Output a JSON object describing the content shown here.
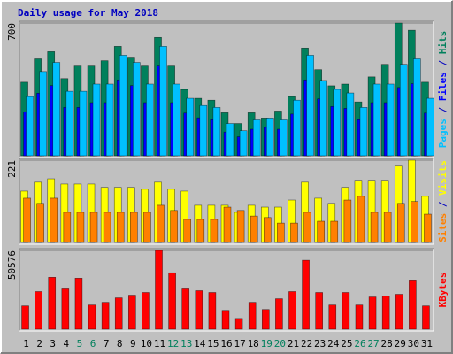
{
  "title": "Daily usage for May 2018",
  "chart_data": [
    {
      "type": "bar",
      "series": [
        {
          "name": "Pages",
          "color": "#00c0ff",
          "values": [
            312,
            444,
            492,
            340,
            340,
            378,
            378,
            530,
            492,
            378,
            577,
            378,
            303,
            265,
            255,
            170,
            132,
            189,
            199,
            189,
            293,
            530,
            397,
            350,
            331,
            255,
            378,
            378,
            482,
            511,
            303
          ]
        },
        {
          "name": "Files",
          "color": "#0000ff",
          "values": [
            230,
            330,
            370,
            255,
            255,
            280,
            280,
            400,
            370,
            280,
            473,
            280,
            225,
            200,
            190,
            125,
            100,
            140,
            150,
            140,
            220,
            400,
            300,
            260,
            250,
            190,
            280,
            280,
            360,
            380,
            225
          ]
        },
        {
          "name": "Hits",
          "color": "#00805c",
          "values": [
            388,
            511,
            549,
            407,
            473,
            473,
            501,
            577,
            520,
            473,
            624,
            473,
            350,
            303,
            293,
            227,
            170,
            227,
            199,
            236,
            312,
            568,
            454,
            369,
            378,
            284,
            416,
            482,
            700,
            662,
            388
          ]
        }
      ],
      "ylim": [
        0,
        700
      ],
      "yticks": [
        700
      ]
    },
    {
      "type": "bar",
      "series": [
        {
          "name": "Sites",
          "color": "#ff8000",
          "values": [
            119,
            105,
            119,
            81,
            81,
            81,
            81,
            81,
            81,
            81,
            100,
            86,
            62,
            62,
            62,
            95,
            86,
            71,
            67,
            52,
            52,
            81,
            57,
            57,
            114,
            124,
            81,
            81,
            105,
            110,
            76
          ]
        },
        {
          "name": "Visits",
          "color": "#ffff00",
          "values": [
            138,
            162,
            171,
            157,
            157,
            157,
            148,
            148,
            148,
            143,
            162,
            143,
            138,
            100,
            100,
            100,
            81,
            100,
            95,
            95,
            114,
            162,
            119,
            105,
            148,
            167,
            167,
            167,
            205,
            221,
            124
          ]
        }
      ],
      "ylim": [
        0,
        221
      ],
      "yticks": [
        221
      ]
    },
    {
      "type": "bar",
      "series": [
        {
          "name": "KBytes",
          "color": "#ff0000",
          "values": [
            14950,
            24150,
            33350,
            26450,
            32770,
            15525,
            17250,
            20125,
            21850,
            23575,
            50576,
            36225,
            26450,
            24725,
            23575,
            12075,
            6900,
            17250,
            12650,
            19550,
            24150,
            44275,
            23575,
            15525,
            23575,
            15525,
            20700,
            21275,
            22425,
            31625,
            14950
          ]
        }
      ],
      "ylim": [
        0,
        50576
      ],
      "yticks": [
        50576
      ],
      "categories": [
        "1",
        "2",
        "3",
        "4",
        "5",
        "6",
        "7",
        "8",
        "9",
        "10",
        "11",
        "12",
        "13",
        "14",
        "15",
        "16",
        "17",
        "18",
        "19",
        "20",
        "21",
        "22",
        "23",
        "24",
        "25",
        "26",
        "27",
        "28",
        "29",
        "30",
        "31"
      ],
      "category_colors": [
        "#000000",
        "#000000",
        "#000000",
        "#000000",
        "#00805c",
        "#00805c",
        "#000000",
        "#000000",
        "#000000",
        "#000000",
        "#000000",
        "#00805c",
        "#00805c",
        "#000000",
        "#000000",
        "#000000",
        "#000000",
        "#000000",
        "#00805c",
        "#00805c",
        "#000000",
        "#000000",
        "#000000",
        "#000000",
        "#000000",
        "#00805c",
        "#00805c",
        "#000000",
        "#000000",
        "#000000",
        "#000000"
      ]
    }
  ]
}
